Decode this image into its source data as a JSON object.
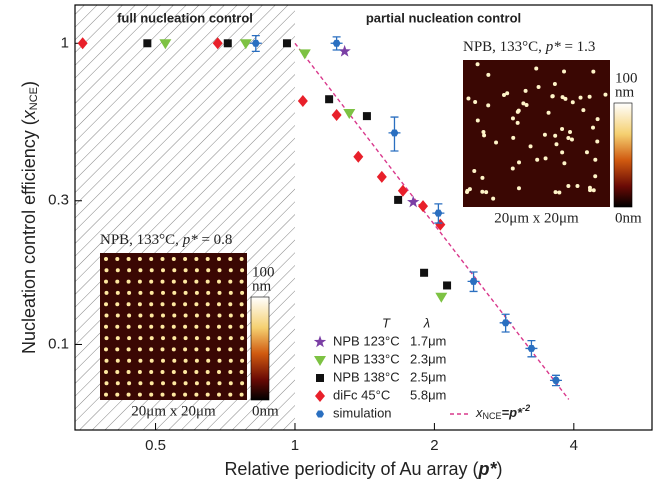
{
  "chart_data": {
    "type": "scatter",
    "xlabel": "Relative periodicity of Au array (",
    "xlabel_var": "p*",
    "xlabel_end": ")",
    "ylabel": "Nucleation control efficiency (",
    "ylabel_var": "x",
    "ylabel_sub": "NCE",
    "ylabel_end": ")",
    "log_x": true,
    "log_y": true,
    "xlim": [
      0.335,
      5.9
    ],
    "ylim": [
      0.052,
      1.34
    ],
    "xticks": [
      0.5,
      1,
      2,
      4
    ],
    "yticks": [
      0.1,
      0.3,
      1
    ],
    "regions": [
      {
        "label": "full nucleation control",
        "xlim": [
          0.335,
          1
        ],
        "hatched": true
      },
      {
        "label": "partial nucleation control",
        "xlim": [
          1,
          5.9
        ],
        "hatched": false
      }
    ],
    "legend_headers": [
      "T",
      "λ"
    ],
    "series": [
      {
        "name": "NPB 123°C",
        "period": "1.7μm",
        "marker": "star",
        "color": "#7b3fa5",
        "x": [
          1.28,
          1.8
        ],
        "values": [
          0.94,
          0.297
        ]
      },
      {
        "name": "NPB 133°C",
        "period": "2.3μm",
        "marker": "triangle",
        "color": "#7dc243",
        "x": [
          0.525,
          0.783,
          1.05,
          1.31,
          2.07
        ],
        "values": [
          1,
          1,
          0.926,
          0.587,
          0.144
        ]
      },
      {
        "name": "NPB 138°C",
        "period": "2.5μm",
        "marker": "square",
        "color": "#111111",
        "x": [
          0.48,
          0.716,
          0.961,
          1.185,
          1.43,
          1.67,
          1.9,
          2.13
        ],
        "values": [
          1,
          1,
          1,
          0.652,
          0.573,
          0.302,
          0.173,
          0.157
        ]
      },
      {
        "name": "diFc  45°C",
        "period": "5.8μm",
        "marker": "diamond",
        "color": "#e8202a",
        "x": [
          0.348,
          0.681,
          1.04,
          1.23,
          1.37,
          1.54,
          1.71,
          1.89,
          2.06
        ],
        "values": [
          1,
          1,
          0.643,
          0.578,
          0.42,
          0.36,
          0.324,
          0.288,
          0.25
        ]
      },
      {
        "name": "simulation",
        "marker": "hexagon",
        "color": "#2a6fc0",
        "x": [
          0.823,
          1.23,
          1.64,
          2.04,
          2.43,
          2.85,
          3.24,
          3.66
        ],
        "values": [
          1,
          1,
          0.504,
          0.273,
          0.162,
          0.118,
          0.097,
          0.076
        ],
        "yerr": [
          0.06,
          0.05,
          0.065,
          0.02,
          0.012,
          0.008,
          0.006,
          0.003
        ]
      }
    ],
    "fit_line": {
      "label_var": "x",
      "label_sub": "NCE",
      "label_eq": "=p*",
      "label_exp": "-2",
      "color": "#d9388c",
      "x": [
        1,
        3.9
      ],
      "values": [
        1,
        0.0657
      ]
    },
    "insets": [
      {
        "caption": "NPB, 133°C, ",
        "caption_var": "p*",
        "caption_end": " = 0.8",
        "scale": "20μm x 20μm",
        "cbar_max": "100",
        "cbar_unit": "nm",
        "cbar_min": "0nm"
      },
      {
        "caption": "NPB, 133°C, ",
        "caption_var": "p*",
        "caption_end": " = 1.3",
        "scale": "20μm x 20μm",
        "cbar_max": "100",
        "cbar_unit": "nm",
        "cbar_min": "0nm"
      }
    ]
  }
}
